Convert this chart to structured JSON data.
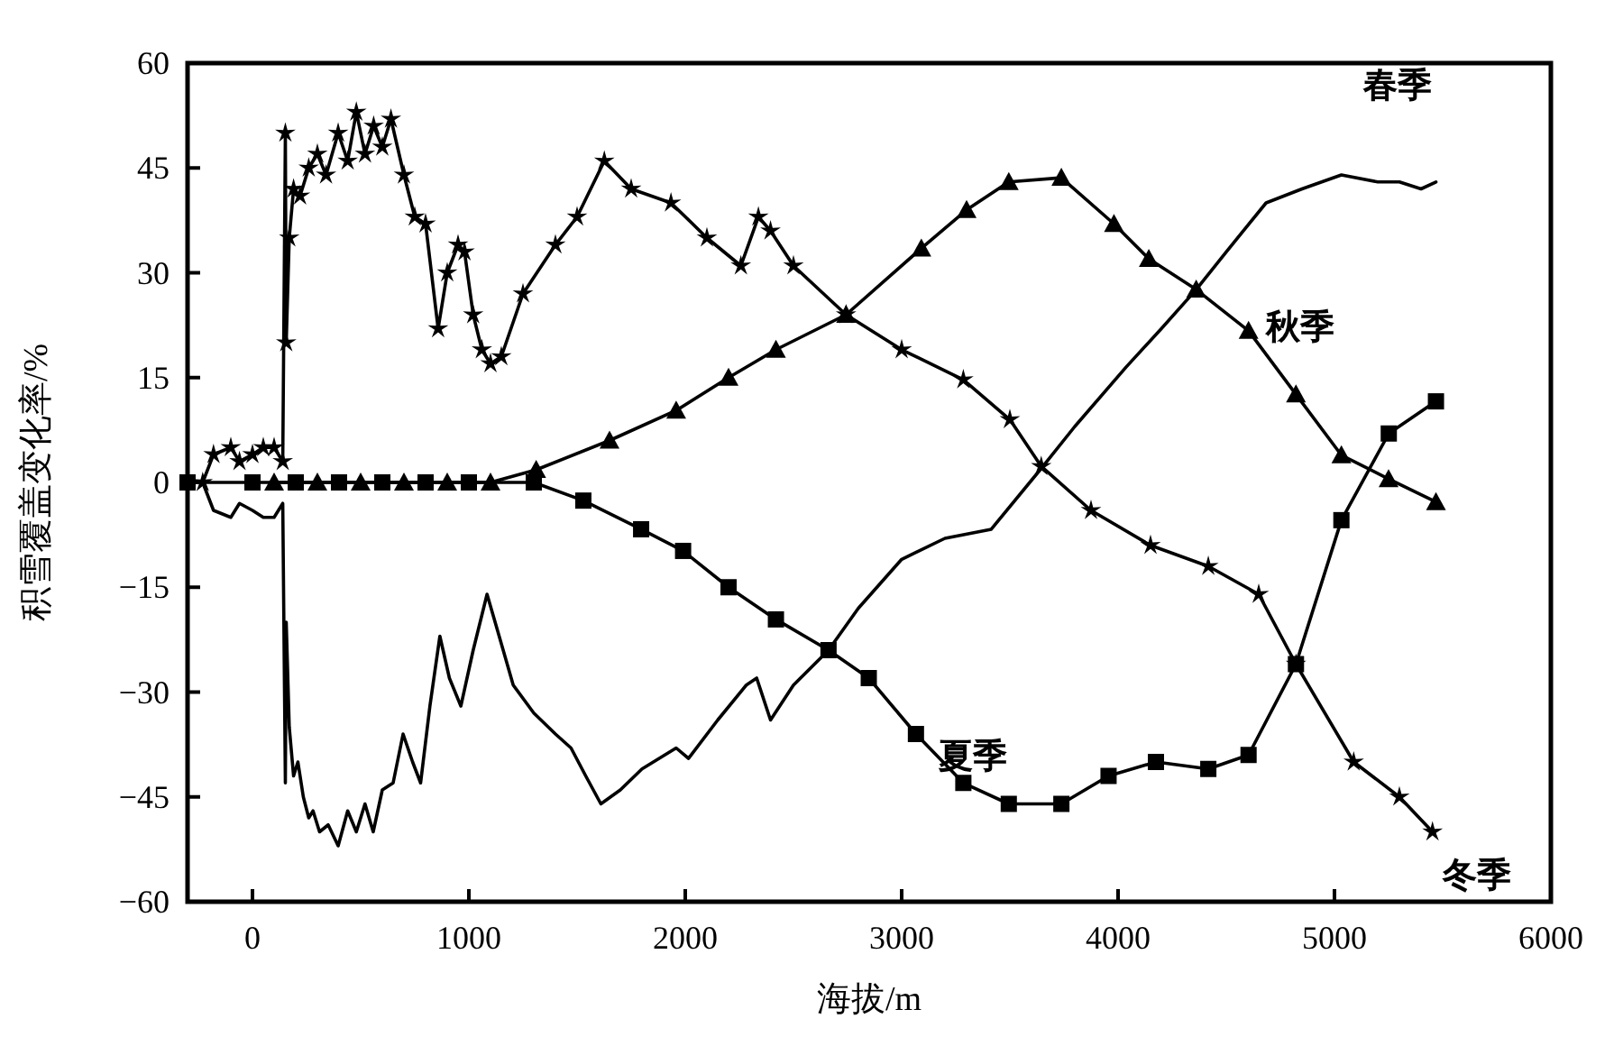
{
  "chart_data": {
    "type": "line",
    "xlabel": "海拔/m",
    "ylabel": "积雪覆盖变化率/%",
    "xlim": [
      -300,
      6000
    ],
    "xticks": [
      0,
      1000,
      2000,
      3000,
      4000,
      5000,
      6000
    ],
    "ylim": [
      -60,
      60
    ],
    "yticks": [
      -60,
      -45,
      -30,
      -15,
      0,
      15,
      30,
      45,
      60
    ],
    "grid": false,
    "line_style": "solid",
    "series": [
      {
        "color": "#000000",
        "marker": "none",
        "x": [
          -300,
          -230,
          -180,
          -100,
          -60,
          0,
          50,
          100,
          140,
          152,
          156,
          170,
          190,
          210,
          235,
          260,
          280,
          310,
          350,
          396,
          440,
          480,
          520,
          558,
          600,
          650,
          696,
          740,
          777,
          820,
          866,
          910,
          963,
          1020,
          1084,
          1140,
          1205,
          1300,
          1400,
          1472,
          1540,
          1610,
          1700,
          1800,
          1958,
          2015,
          2150,
          2282,
          2330,
          2394,
          2500,
          2662,
          2800,
          3000,
          3200,
          3414,
          3645,
          3800,
          4037,
          4200,
          4361,
          4500,
          4684,
          4850,
          5032,
          5200,
          5300,
          5400,
          5469
        ],
        "values": [
          0,
          0,
          -4,
          -5,
          -3,
          -4,
          -5,
          -5,
          -3,
          -43,
          -20,
          -35,
          -42,
          -40,
          -45,
          -48,
          -47,
          -50,
          -49,
          -52,
          -47,
          -50,
          -46,
          -50,
          -44,
          -43,
          -36,
          -40,
          -43,
          -32,
          -22,
          -28,
          -32,
          -24,
          -16,
          -22,
          -29,
          -33,
          -36,
          -38,
          -42,
          -46,
          -44,
          -41,
          -38,
          -39.5,
          -34,
          -29,
          -28,
          -34,
          -29,
          -24,
          -18,
          -11,
          -8,
          -6.7,
          2,
          8,
          16.5,
          22,
          27.6,
          33,
          40,
          42,
          44,
          43,
          43,
          42,
          43
        ]
      },
      {
        "color": "#000000",
        "marker": "triangle",
        "x": [
          100,
          300,
          500,
          700,
          900,
          1100,
          1311,
          1650,
          1958,
          2200,
          2419,
          2743,
          3091,
          3300,
          3495,
          3738,
          3981,
          4142,
          4361,
          4603,
          4822,
          5032,
          5250,
          5469
        ],
        "values": [
          0,
          0,
          0,
          0,
          0,
          0,
          1.8,
          6,
          10.3,
          15,
          19,
          24,
          33.5,
          39,
          43,
          43.6,
          37,
          32,
          27.6,
          21.7,
          12.6,
          3.9,
          0.5,
          -2.8
        ]
      },
      {
        "color": "#000000",
        "marker": "star",
        "x": [
          -230,
          -180,
          -100,
          -60,
          0,
          50,
          100,
          140,
          152,
          156,
          170,
          190,
          220,
          260,
          300,
          340,
          396,
          440,
          480,
          520,
          560,
          600,
          640,
          700,
          750,
          800,
          858,
          900,
          950,
          980,
          1020,
          1060,
          1100,
          1150,
          1250,
          1400,
          1500,
          1626,
          1750,
          1934,
          2100,
          2257,
          2338,
          2394,
          2500,
          2743,
          3000,
          3285,
          3500,
          3645,
          3875,
          4150,
          4417,
          4650,
          4822,
          5089,
          5300,
          5453
        ],
        "values": [
          0,
          4,
          5,
          3,
          4,
          5,
          5,
          3,
          50,
          20,
          35,
          42,
          41,
          45,
          47,
          44,
          50,
          46,
          53,
          47,
          51,
          48,
          52,
          44,
          38,
          37,
          22,
          30,
          34,
          33,
          24,
          19,
          17,
          18,
          27,
          34,
          38,
          46,
          42,
          40,
          35,
          31,
          38,
          36,
          31,
          24,
          19,
          14.7,
          9,
          2.3,
          -4,
          -9,
          -12,
          -16,
          -26,
          -40,
          -45,
          -50
        ]
      },
      {
        "color": "#000000",
        "marker": "square",
        "x": [
          -300,
          0,
          200,
          400,
          600,
          800,
          1000,
          1300,
          1529,
          1796,
          1990,
          2200,
          2419,
          2662,
          2848,
          3066,
          3285,
          3495,
          3738,
          3956,
          4175,
          4417,
          4603,
          4822,
          5032,
          5251,
          5469
        ],
        "values": [
          0,
          0,
          0,
          0,
          0,
          0,
          0,
          0,
          -2.6,
          -6.7,
          -9.8,
          -15,
          -19.6,
          -24,
          -28,
          -36,
          -43,
          -46,
          -46,
          -42,
          -40,
          -41,
          -39,
          -26,
          -5.4,
          7,
          11.6
        ]
      }
    ],
    "annotations": [
      "春季",
      "夏季",
      "秋季",
      "冬季"
    ]
  }
}
